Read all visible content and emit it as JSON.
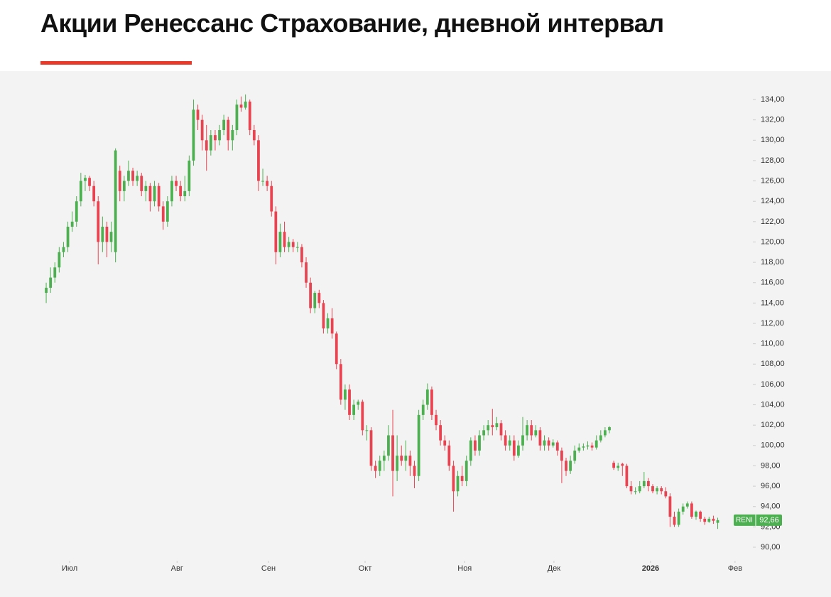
{
  "chart_data": {
    "type": "candlestick",
    "title": "Акции Ренессанс Страхование, дневной интервал",
    "up_color": "#4caf50",
    "down_color": "#e84350",
    "xlim": [
      -0.5,
      160
    ],
    "xticks": [
      {
        "value": 5.4,
        "label": "Июл"
      },
      {
        "value": 30.2,
        "label": "Авг"
      },
      {
        "value": 51.3,
        "label": "Сен"
      },
      {
        "value": 73.6,
        "label": "Окт"
      },
      {
        "value": 96.6,
        "label": "Ноя"
      },
      {
        "value": 117.2,
        "label": "Дек"
      },
      {
        "value": 139.5,
        "label": "2026",
        "bold": true
      },
      {
        "value": 159,
        "label": "Фев"
      }
    ],
    "ylim": [
      89,
      135.4
    ],
    "yticks": [
      {
        "value": 90,
        "label": "90,00"
      },
      {
        "value": 92,
        "label": "92,00"
      },
      {
        "value": 94,
        "label": "94,00"
      },
      {
        "value": 96,
        "label": "96,00"
      },
      {
        "value": 98,
        "label": "98,00"
      },
      {
        "value": 100,
        "label": "100,00"
      },
      {
        "value": 102,
        "label": "102,00"
      },
      {
        "value": 104,
        "label": "104,00"
      },
      {
        "value": 106,
        "label": "106,00"
      },
      {
        "value": 108,
        "label": "108,00"
      },
      {
        "value": 110,
        "label": "110,00"
      },
      {
        "value": 112,
        "label": "112,00"
      },
      {
        "value": 114,
        "label": "114,00"
      },
      {
        "value": 116,
        "label": "116,00"
      },
      {
        "value": 118,
        "label": "118,00"
      },
      {
        "value": 120,
        "label": "120,00"
      },
      {
        "value": 122,
        "label": "122,00"
      },
      {
        "value": 124,
        "label": "124,00"
      },
      {
        "value": 126,
        "label": "126,00"
      },
      {
        "value": 128,
        "label": "128,00"
      },
      {
        "value": 130,
        "label": "130,00"
      },
      {
        "value": 132,
        "label": "132,00"
      },
      {
        "value": 134,
        "label": "134,00"
      }
    ],
    "last_price": {
      "ticker": "RENI",
      "value": 92.66,
      "label": "92,66"
    },
    "ohlc": [
      [
        115,
        116,
        114,
        115.5
      ],
      [
        115.5,
        117.5,
        115,
        116.5
      ],
      [
        116.5,
        118,
        116,
        117.5
      ],
      [
        117.5,
        119.5,
        117,
        119
      ],
      [
        119,
        120,
        118.5,
        119.5
      ],
      [
        119.5,
        122,
        119,
        121.5
      ],
      [
        121.5,
        123,
        121,
        122
      ],
      [
        122,
        124.5,
        121.5,
        124
      ],
      [
        124,
        126.8,
        123.5,
        126
      ],
      [
        126,
        126.6,
        125,
        126.3
      ],
      [
        126.3,
        126.5,
        125,
        125.5
      ],
      [
        125.5,
        126,
        123.5,
        124
      ],
      [
        124,
        124.5,
        117.8,
        120
      ],
      [
        120,
        122.5,
        119,
        121.5
      ],
      [
        121.5,
        122,
        118.5,
        120
      ],
      [
        120,
        122,
        119,
        121
      ],
      [
        119,
        129.2,
        118,
        129
      ],
      [
        127,
        127.5,
        124,
        125
      ],
      [
        125,
        126.5,
        124,
        126
      ],
      [
        126,
        128,
        125.5,
        127
      ],
      [
        127,
        127.3,
        125.5,
        126
      ],
      [
        126,
        127,
        125.5,
        126.5
      ],
      [
        126.5,
        126.8,
        124.5,
        125
      ],
      [
        125,
        126,
        124,
        125.5
      ],
      [
        125.5,
        125.8,
        123,
        124
      ],
      [
        124,
        126,
        123.5,
        125.5
      ],
      [
        125.5,
        125.8,
        123,
        123.5
      ],
      [
        123.5,
        124,
        121.2,
        122
      ],
      [
        122,
        124.5,
        121.5,
        124
      ],
      [
        124,
        126.5,
        123.5,
        126
      ],
      [
        126,
        126.5,
        125,
        125.5
      ],
      [
        125.5,
        126,
        124,
        124.5
      ],
      [
        124.5,
        126.5,
        124,
        125
      ],
      [
        125,
        128.5,
        124.5,
        128
      ],
      [
        128,
        134,
        127.5,
        133
      ],
      [
        133,
        133.5,
        131,
        132
      ],
      [
        132,
        132.5,
        129,
        130
      ],
      [
        130,
        131.5,
        127,
        129
      ],
      [
        129,
        131,
        128.5,
        130.5
      ],
      [
        130.5,
        131,
        129,
        130
      ],
      [
        130,
        131.5,
        129.5,
        131
      ],
      [
        131,
        132.5,
        130.5,
        132
      ],
      [
        132,
        132.3,
        129,
        130
      ],
      [
        130,
        131.5,
        129,
        131
      ],
      [
        131,
        134,
        130.5,
        133.5
      ],
      [
        133.5,
        134.3,
        132.8,
        133.2
      ],
      [
        133.2,
        134.5,
        133,
        133.8
      ],
      [
        133.8,
        134,
        130.5,
        131
      ],
      [
        131,
        131.5,
        129.5,
        130
      ],
      [
        130,
        130.5,
        125,
        126
      ],
      [
        126,
        127.2,
        125.5,
        126
      ],
      [
        126,
        126.5,
        125,
        125.5
      ],
      [
        125.5,
        126,
        122.5,
        123
      ],
      [
        123,
        123.5,
        117.8,
        119
      ],
      [
        119,
        121.8,
        118.5,
        121
      ],
      [
        121,
        122,
        119,
        119.5
      ],
      [
        119.5,
        120.5,
        119,
        120
      ],
      [
        120,
        120.3,
        119,
        119.5
      ],
      [
        119.5,
        120,
        119,
        119.5
      ],
      [
        119.5,
        119.8,
        117.5,
        118
      ],
      [
        118,
        118.5,
        115.5,
        116
      ],
      [
        116,
        116.5,
        113,
        113.5
      ],
      [
        113.5,
        115.2,
        113,
        115
      ],
      [
        115,
        115.3,
        113.5,
        114
      ],
      [
        114,
        114.3,
        111,
        111.5
      ],
      [
        111.5,
        113,
        111,
        112.5
      ],
      [
        112.5,
        113.5,
        110.5,
        111
      ],
      [
        111,
        111.2,
        107.5,
        108
      ],
      [
        108,
        108.5,
        104,
        104.5
      ],
      [
        104.5,
        106,
        103.5,
        105.5
      ],
      [
        105.5,
        106,
        102.5,
        103
      ],
      [
        103,
        104.5,
        102.5,
        104
      ],
      [
        104,
        104.5,
        103.5,
        104.3
      ],
      [
        104.3,
        104.5,
        101,
        101.5
      ],
      [
        101.5,
        102,
        100.5,
        101.5
      ],
      [
        101.5,
        101.8,
        97.5,
        98
      ],
      [
        98,
        98.5,
        96.8,
        97.5
      ],
      [
        97.5,
        99,
        97,
        98.5
      ],
      [
        98.5,
        99.5,
        97.5,
        99
      ],
      [
        99,
        102,
        98.5,
        101
      ],
      [
        101,
        103.5,
        95,
        97.5
      ],
      [
        97.5,
        101,
        96.5,
        99
      ],
      [
        99,
        100,
        98,
        98.5
      ],
      [
        98.5,
        100.5,
        97.5,
        99
      ],
      [
        99,
        99.5,
        97,
        98
      ],
      [
        98,
        98.5,
        95.8,
        97
      ],
      [
        97,
        103.5,
        96.5,
        103
      ],
      [
        103,
        104.5,
        102.5,
        104
      ],
      [
        104,
        106.1,
        103.5,
        105.5
      ],
      [
        105.5,
        105.8,
        102.5,
        103
      ],
      [
        103,
        103.5,
        101.5,
        102
      ],
      [
        102,
        102.5,
        100,
        100.5
      ],
      [
        100.5,
        101,
        99.5,
        100
      ],
      [
        100,
        100.5,
        97.5,
        98
      ],
      [
        98,
        98.5,
        93.5,
        95.5
      ],
      [
        95.5,
        97.5,
        95,
        97
      ],
      [
        97,
        98,
        96,
        96.5
      ],
      [
        96.5,
        99,
        96,
        98.5
      ],
      [
        98.5,
        100.8,
        98,
        100.5
      ],
      [
        100.5,
        101,
        99,
        99.5
      ],
      [
        99.5,
        101.5,
        99,
        101
      ],
      [
        101,
        102,
        100.5,
        101.5
      ],
      [
        101.5,
        102.5,
        101,
        102
      ],
      [
        102,
        103.6,
        101,
        101.8
      ],
      [
        101.8,
        102.8,
        101.5,
        102.2
      ],
      [
        102.2,
        102.5,
        100.5,
        101
      ],
      [
        101,
        101.5,
        99.5,
        100
      ],
      [
        100,
        101,
        99.5,
        100.5
      ],
      [
        100.5,
        101,
        98.5,
        99
      ],
      [
        99,
        100.5,
        98.8,
        100
      ],
      [
        100,
        102.8,
        99.5,
        101
      ],
      [
        101,
        102.5,
        100.5,
        102
      ],
      [
        102,
        102.5,
        100.5,
        101
      ],
      [
        101,
        102,
        100.8,
        101.5
      ],
      [
        101.5,
        101.8,
        99.5,
        100
      ],
      [
        100,
        101,
        99.5,
        100.5
      ],
      [
        100.5,
        100.8,
        99.5,
        100
      ],
      [
        100,
        100.6,
        99.8,
        100.3
      ],
      [
        100.3,
        100.5,
        99,
        99.5
      ],
      [
        99.5,
        99.8,
        96.3,
        98.5
      ],
      [
        98.5,
        98.8,
        97,
        97.5
      ],
      [
        97.5,
        99,
        97.2,
        98.5
      ],
      [
        98.5,
        100,
        98.2,
        99.5
      ],
      [
        99.5,
        100.2,
        99.3,
        99.8
      ],
      [
        99.8,
        100.2,
        99.5,
        99.9
      ],
      [
        99.9,
        100.4,
        99.6,
        100
      ],
      [
        100,
        100.3,
        99.5,
        99.8
      ],
      [
        99.8,
        101,
        99.6,
        100.5
      ],
      [
        100.5,
        101.5,
        100.3,
        101
      ],
      [
        101,
        101.8,
        100.8,
        101.5
      ],
      [
        101.5,
        101.9,
        101.2,
        101.8
      ],
      [
        98.3,
        98.5,
        97.6,
        97.8
      ],
      [
        97.8,
        98.3,
        97.5,
        98
      ],
      [
        98.2,
        98.3,
        97,
        98
      ],
      [
        98,
        98.2,
        95.8,
        96
      ],
      [
        96,
        96.5,
        95.2,
        95.5
      ],
      [
        95.5,
        95.9,
        95.2,
        95.5
      ],
      [
        95.5,
        96.5,
        95.3,
        96
      ],
      [
        96,
        97.4,
        95.8,
        96.5
      ],
      [
        96.5,
        96.8,
        95.5,
        96
      ],
      [
        96,
        96.2,
        95.3,
        95.5
      ],
      [
        95.5,
        96,
        95.2,
        95.8
      ],
      [
        95.8,
        96,
        95.2,
        95.5
      ],
      [
        95.5,
        95.9,
        94.8,
        95
      ],
      [
        95,
        95.3,
        92,
        93
      ],
      [
        93,
        93.5,
        92,
        92.2
      ],
      [
        92.2,
        93.8,
        92,
        93.5
      ],
      [
        93.5,
        94.3,
        93.2,
        94
      ],
      [
        94,
        94.5,
        93.8,
        94.3
      ],
      [
        94.3,
        94.5,
        92.8,
        93
      ],
      [
        93,
        93.6,
        92.7,
        93.5
      ],
      [
        93.5,
        93.6,
        92.5,
        92.8
      ],
      [
        92.8,
        93,
        92.2,
        92.5
      ],
      [
        92.5,
        93,
        92.4,
        92.8
      ],
      [
        92.8,
        93.1,
        92.3,
        92.6
      ],
      [
        92.4,
        92.9,
        91.8,
        92.66
      ]
    ]
  }
}
